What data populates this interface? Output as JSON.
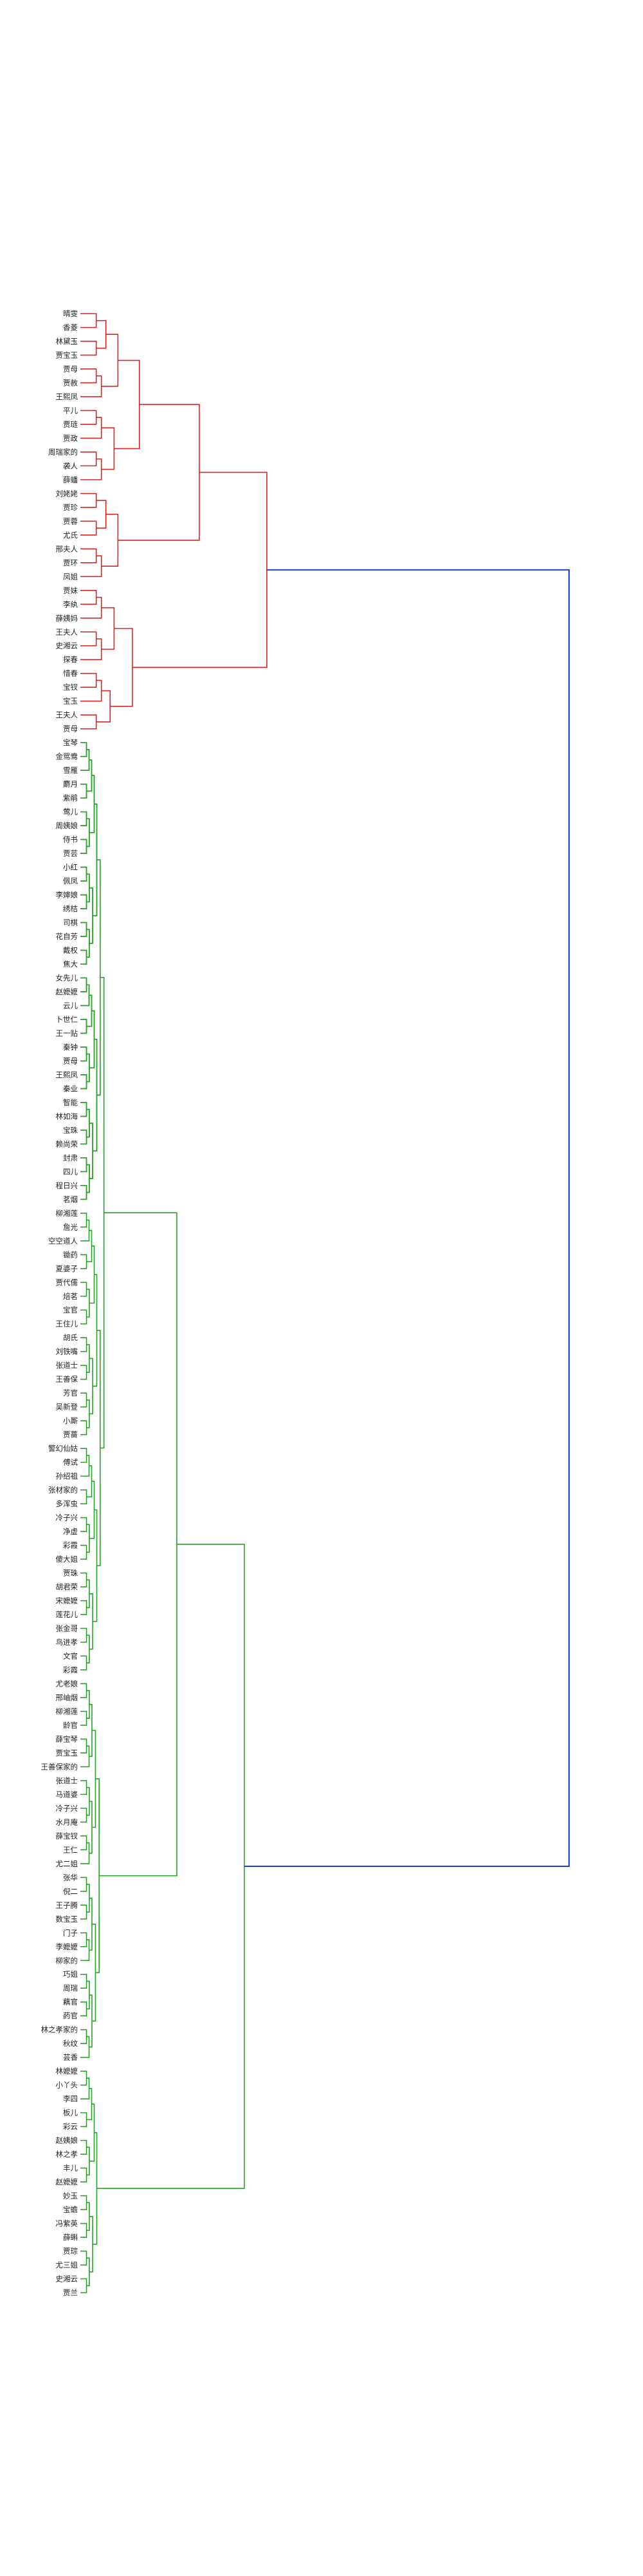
{
  "chart_data": {
    "type": "dendrogram",
    "orientation": "left",
    "title": "",
    "xlabel": "",
    "ylabel": "",
    "grid": false,
    "colors": {
      "cluster1": "#d62728",
      "cluster2": "#2ca02c",
      "link": "#1f3fd0"
    },
    "labels": [
      "晴雯",
      "香菱",
      "林黛玉",
      "贾宝玉",
      "贾母",
      "贾赦",
      "王熙凤",
      "平儿",
      "贾琏",
      "贾政",
      "周瑞家的",
      "袭人",
      "薛蟠",
      "刘姥姥",
      "贾珍",
      "贾蓉",
      "尤氏",
      "邢夫人",
      "贾环",
      "凤姐",
      "贾妹",
      "李纨",
      "薛姨妈",
      "王夫人",
      "史湘云",
      "探春",
      "惜春",
      "宝钗",
      "宝玉",
      "王夫人",
      "贾母",
      "宝琴",
      "金鸳鸯",
      "雪雁",
      "麝月",
      "紫鹃",
      "莺儿",
      "周姨娘",
      "侍书",
      "贾芸",
      "小红",
      "佩凤",
      "李婶娘",
      "绣桔",
      "司棋",
      "花自芳",
      "戴权",
      "焦大",
      "女先儿",
      "赵嬷嬷",
      "云儿",
      "卜世仁",
      "王一贴",
      "秦钟",
      "贾母",
      "王熙凤",
      "秦业",
      "智能",
      "林如海",
      "宝珠",
      "赖尚荣",
      "封肃",
      "四儿",
      "程日兴",
      "茗烟",
      "柳湘莲",
      "詹光",
      "空空道人",
      "锄药",
      "夏婆子",
      "贾代儒",
      "焙茗",
      "宝官",
      "王住儿",
      "胡氏",
      "刘铁嘴",
      "张道士",
      "王善保",
      "芳官",
      "吴新登",
      "小厮",
      "贾蔷",
      "警幻仙姑",
      "傅试",
      "孙绍祖",
      "张材家的",
      "多浑虫",
      "冷子兴",
      "净虚",
      "彩霞",
      "傻大姐",
      "贾珠",
      "胡君荣",
      "宋嬷嬷",
      "莲花儿",
      "张金哥",
      "鸟进孝",
      "文官",
      "彩霞",
      "尤老娘",
      "邢岫烟",
      "柳湘莲",
      "龄官",
      "薛宝琴",
      "贾宝玉",
      "王善保家的",
      "张道士",
      "马道婆",
      "冷子兴",
      "水月庵",
      "薛宝钗",
      "王仁",
      "尤二姐",
      "张华",
      "倪二",
      "王子腾",
      "数宝玉",
      "门子",
      "李嬷嬷",
      "柳家的",
      "巧姐",
      "周瑞",
      "藕官",
      "菂官",
      "林之孝家的",
      "秋纹",
      "芸香",
      "林嬷嬷",
      "小丫头",
      "李四",
      "板儿",
      "彩云",
      "赵姨娘",
      "林之孝",
      "丰儿",
      "赵嬷嬷",
      "妙玉",
      "宝蟾",
      "冯紫英",
      "薛蝌",
      "贾琮",
      "尤三姐",
      "史湘云",
      "贾兰"
    ]
  }
}
